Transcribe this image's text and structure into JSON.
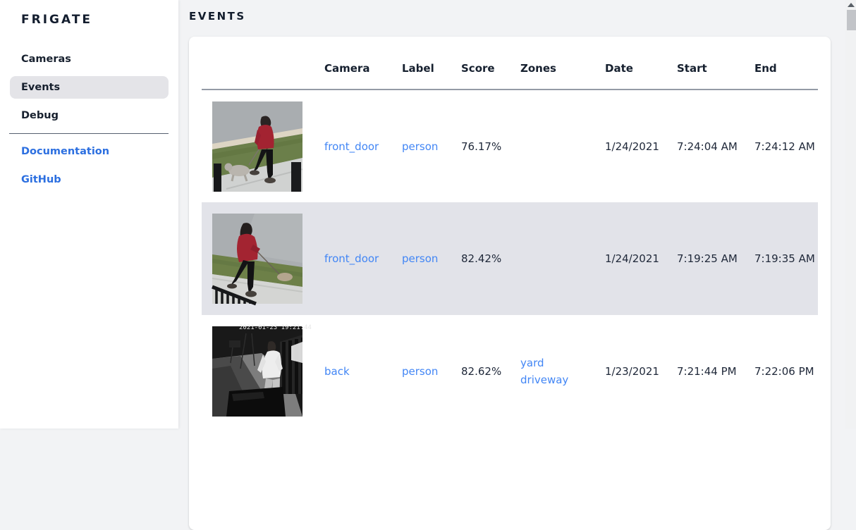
{
  "app": {
    "title": "FRIGATE"
  },
  "sidebar": {
    "items": [
      {
        "label": "Cameras",
        "selected": false
      },
      {
        "label": "Events",
        "selected": true
      },
      {
        "label": "Debug",
        "selected": false
      }
    ],
    "links": [
      {
        "label": "Documentation"
      },
      {
        "label": "GitHub"
      }
    ]
  },
  "page": {
    "title": "EVENTS"
  },
  "table": {
    "columns": [
      "",
      "Camera",
      "Label",
      "Score",
      "Zones",
      "Date",
      "Start",
      "End"
    ],
    "rows": [
      {
        "camera": "front_door",
        "label": "person",
        "score": "76.17%",
        "zones": [],
        "date": "1/24/2021",
        "start": "7:24:04 AM",
        "end": "7:24:12 AM",
        "highlighted": false,
        "thumb": "person-red-coat-dog-day"
      },
      {
        "camera": "front_door",
        "label": "person",
        "score": "82.42%",
        "zones": [],
        "date": "1/24/2021",
        "start": "7:19:25 AM",
        "end": "7:19:35 AM",
        "highlighted": true,
        "thumb": "person-red-hoodie-dog-day"
      },
      {
        "camera": "back",
        "label": "person",
        "score": "82.62%",
        "zones": [
          "yard",
          "driveway"
        ],
        "date": "1/23/2021",
        "start": "7:21:44 PM",
        "end": "7:22:06 PM",
        "highlighted": false,
        "thumb": "person-white-shirt-night",
        "thumb_overlay": "2021-01-23 19:21:44"
      }
    ]
  },
  "colors": {
    "page_background": "#f2f3f5",
    "card_background": "#ffffff",
    "dark_text": "#16202f",
    "table_link_blue": "#4286f5",
    "sidebar_link_blue": "#2c6fe0",
    "row_highlight": "#e2e3e9",
    "nav_selected": "#e4e4e8"
  }
}
